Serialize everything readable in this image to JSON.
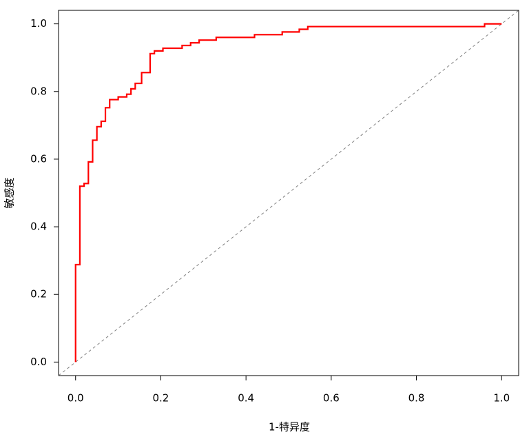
{
  "chart_data": {
    "type": "line",
    "x_label": "1-特异度",
    "y_label": "敏感度",
    "xlim": [
      -0.04,
      1.04
    ],
    "ylim": [
      -0.04,
      1.04
    ],
    "xticks": [
      {
        "value": 0,
        "label": "0.0"
      },
      0.2,
      0.4,
      0.6,
      0.8,
      {
        "value": 1,
        "label": "1.0"
      }
    ],
    "yticks": [
      {
        "value": 0,
        "label": "0.0"
      },
      0.2,
      0.4,
      0.6,
      0.8,
      {
        "value": 1,
        "label": "1.0"
      }
    ],
    "x": [
      0,
      0,
      0.01,
      0.01,
      0.02,
      0.02,
      0.03,
      0.03,
      0.04,
      0.04,
      0.05,
      0.05,
      0.06,
      0.06,
      0.07,
      0.07,
      0.08,
      0.08,
      0.1,
      0.1,
      0.12,
      0.12,
      0.13,
      0.13,
      0.14,
      0.14,
      0.155,
      0.155,
      0.175,
      0.175,
      0.185,
      0.185,
      0.205,
      0.205,
      0.25,
      0.25,
      0.27,
      0.27,
      0.29,
      0.29,
      0.33,
      0.33,
      0.42,
      0.42,
      0.485,
      0.485,
      0.525,
      0.525,
      0.545,
      0.545,
      0.96,
      0.96,
      1.0
    ],
    "series": [
      {
        "color": "#ff0000",
        "values": [
          0,
          0.288,
          0.288,
          0.52,
          0.52,
          0.528,
          0.528,
          0.592,
          0.592,
          0.656,
          0.656,
          0.696,
          0.696,
          0.712,
          0.712,
          0.752,
          0.752,
          0.776,
          0.776,
          0.784,
          0.784,
          0.792,
          0.792,
          0.808,
          0.808,
          0.824,
          0.824,
          0.856,
          0.856,
          0.912,
          0.912,
          0.92,
          0.92,
          0.928,
          0.928,
          0.936,
          0.936,
          0.944,
          0.944,
          0.952,
          0.952,
          0.96,
          0.96,
          0.968,
          0.968,
          0.976,
          0.976,
          0.984,
          0.984,
          0.992,
          0.992,
          1.0,
          1.0
        ]
      }
    ],
    "reference_line": {
      "x": [
        -0.04,
        1.04
      ],
      "y": [
        -0.04,
        1.04
      ],
      "color": "#808080",
      "dashed": true
    }
  }
}
